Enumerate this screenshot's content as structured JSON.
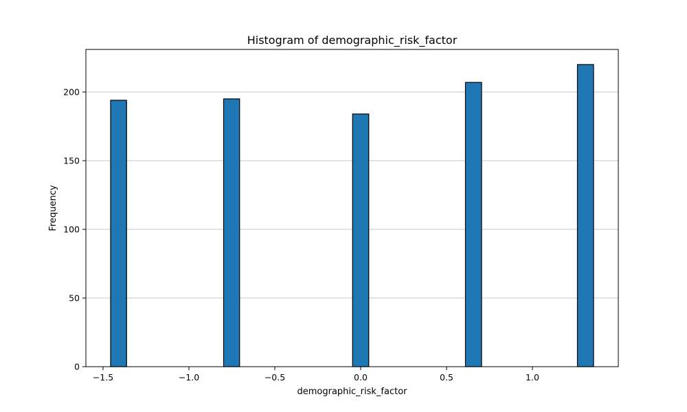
{
  "chart_data": {
    "type": "bar",
    "title": "Histogram of demographic_risk_factor",
    "xlabel": "demographic_risk_factor",
    "ylabel": "Frequency",
    "xlim": [
      -1.6,
      1.5
    ],
    "ylim": [
      0,
      231
    ],
    "xticks": [
      -1.5,
      -1.0,
      -0.5,
      0.0,
      0.5,
      1.0
    ],
    "xtick_labels": [
      "−1.5",
      "−1.0",
      "−0.5",
      "0.0",
      "0.5",
      "1.0"
    ],
    "yticks": [
      0,
      50,
      100,
      150,
      200
    ],
    "ytick_labels": [
      "0",
      "50",
      "100",
      "150",
      "200"
    ],
    "grid": "y",
    "bars": [
      {
        "x0": -1.456,
        "x1": -1.363,
        "value": 194
      },
      {
        "x0": -0.798,
        "x1": -0.705,
        "value": 195
      },
      {
        "x0": -0.047,
        "x1": 0.047,
        "value": 184
      },
      {
        "x0": 0.61,
        "x1": 0.704,
        "value": 207
      },
      {
        "x0": 1.262,
        "x1": 1.356,
        "value": 220
      }
    ]
  }
}
